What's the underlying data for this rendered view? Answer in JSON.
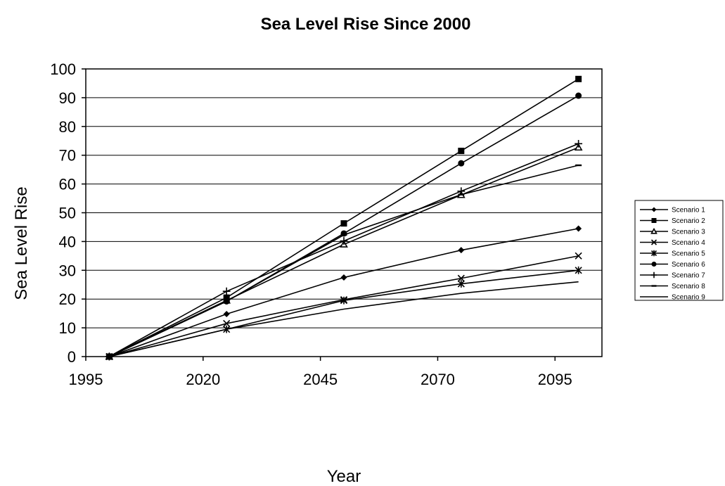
{
  "chart_data": {
    "type": "line",
    "title": "Sea Level Rise Since 2000",
    "xlabel": "Year",
    "ylabel": "Sea Level Rise",
    "xlim": [
      1995,
      2105
    ],
    "ylim": [
      0,
      100
    ],
    "xticks": [
      1995,
      2020,
      2045,
      2070,
      2095
    ],
    "yticks": [
      0,
      10,
      20,
      30,
      40,
      50,
      60,
      70,
      80,
      90,
      100
    ],
    "grid": "horizontal",
    "legend_position": "right",
    "x": [
      2000,
      2025,
      2050,
      2075,
      2100
    ],
    "series": [
      {
        "name": "Scenario 1",
        "marker": "diamond",
        "values": [
          0,
          14.8,
          27.5,
          37,
          44.5
        ]
      },
      {
        "name": "Scenario 2",
        "marker": "square",
        "values": [
          0,
          20.5,
          46.3,
          71.5,
          96.5
        ]
      },
      {
        "name": "Scenario 3",
        "marker": "triangle",
        "values": [
          0,
          19.5,
          39,
          56.2,
          72.7
        ]
      },
      {
        "name": "Scenario 4",
        "marker": "x",
        "values": [
          0,
          11.5,
          19.8,
          27.2,
          35
        ]
      },
      {
        "name": "Scenario 5",
        "marker": "star",
        "values": [
          0,
          9.5,
          19.5,
          25.3,
          30
        ]
      },
      {
        "name": "Scenario 6",
        "marker": "circle",
        "values": [
          0,
          19.2,
          42.8,
          67.2,
          90.7
        ]
      },
      {
        "name": "Scenario 7",
        "marker": "plus",
        "values": [
          0,
          22.7,
          40.2,
          57.5,
          74
        ]
      },
      {
        "name": "Scenario 8",
        "marker": "dash",
        "values": [
          0,
          19.2,
          42.3,
          56.3,
          66.5
        ]
      },
      {
        "name": "Scenario 9",
        "marker": "none",
        "values": [
          0,
          9.5,
          16.5,
          22,
          26
        ]
      }
    ]
  }
}
